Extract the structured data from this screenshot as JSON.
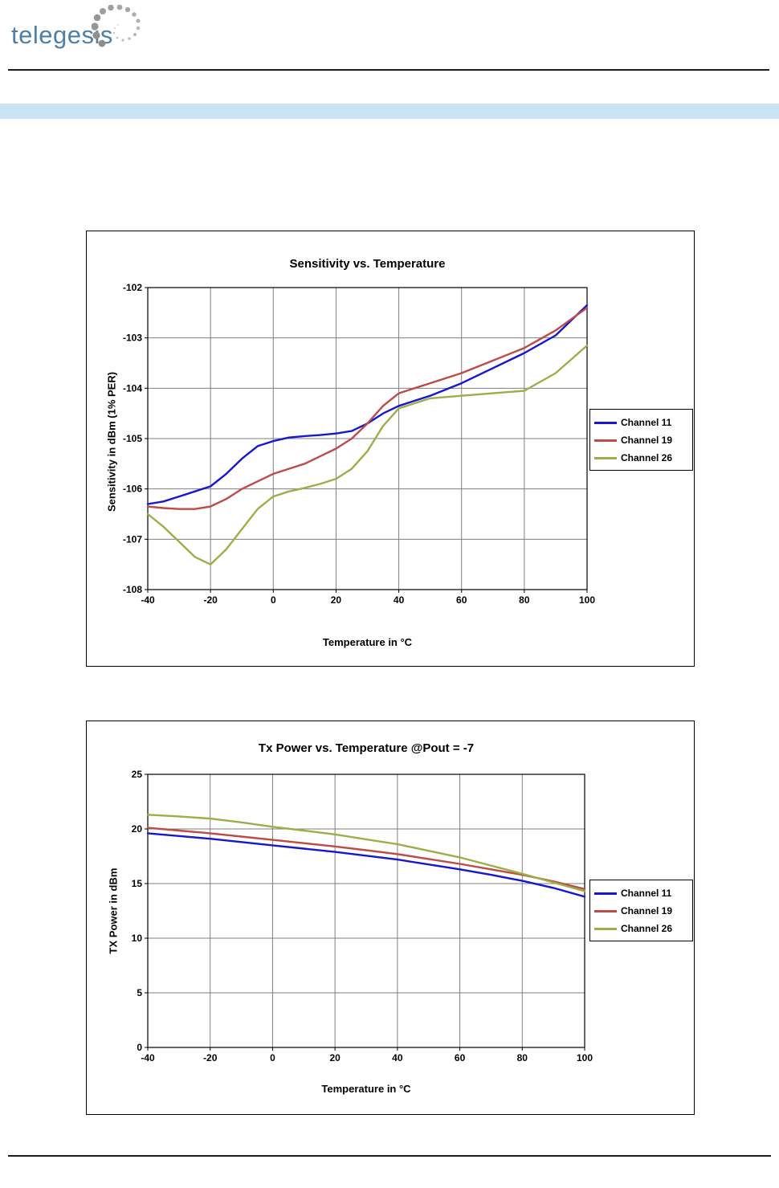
{
  "page": {
    "logo_text": "telegesis",
    "band_color": "#c9e3f4"
  },
  "chart_data": [
    {
      "type": "line",
      "title": "Sensitivity vs. Temperature",
      "xlabel": "Temperature in °C",
      "ylabel": "Sensitivity in dBm (1% PER)",
      "xlim": [
        -40,
        100
      ],
      "ylim": [
        -108,
        -102
      ],
      "xticks": [
        -40,
        -20,
        0,
        20,
        40,
        60,
        80,
        100
      ],
      "yticks": [
        -102,
        -103,
        -104,
        -105,
        -106,
        -107,
        -108
      ],
      "grid": true,
      "legend_position": "right",
      "x": [
        -40,
        -35,
        -30,
        -25,
        -20,
        -15,
        -10,
        -5,
        0,
        5,
        10,
        15,
        20,
        25,
        30,
        35,
        40,
        45,
        50,
        60,
        70,
        80,
        90,
        100
      ],
      "series": [
        {
          "name": "Channel 11",
          "color": "#1717d1",
          "values": [
            -106.3,
            -106.25,
            -106.15,
            -106.05,
            -105.95,
            -105.7,
            -105.4,
            -105.15,
            -105.05,
            -104.98,
            -104.95,
            -104.93,
            -104.9,
            -104.85,
            -104.7,
            -104.5,
            -104.35,
            -104.25,
            -104.15,
            -103.9,
            -103.6,
            -103.3,
            -102.95,
            -102.35
          ]
        },
        {
          "name": "Channel 19",
          "color": "#bd4b47",
          "values": [
            -106.35,
            -106.38,
            -106.4,
            -106.4,
            -106.35,
            -106.2,
            -106.0,
            -105.85,
            -105.7,
            -105.6,
            -105.5,
            -105.35,
            -105.2,
            -105.0,
            -104.7,
            -104.35,
            -104.1,
            -104.0,
            -103.9,
            -103.7,
            -103.45,
            -103.2,
            -102.85,
            -102.4
          ]
        },
        {
          "name": "Channel 26",
          "color": "#9cae49",
          "values": [
            -106.5,
            -106.75,
            -107.05,
            -107.35,
            -107.5,
            -107.2,
            -106.8,
            -106.4,
            -106.15,
            -106.05,
            -105.98,
            -105.9,
            -105.8,
            -105.6,
            -105.25,
            -104.75,
            -104.4,
            -104.3,
            -104.2,
            -104.15,
            -104.1,
            -104.05,
            -103.7,
            -103.15
          ]
        }
      ]
    },
    {
      "type": "line",
      "title": "Tx Power vs. Temperature @Pout = -7",
      "xlabel": "Temperature in °C",
      "ylabel": "TX Power in dBm",
      "xlim": [
        -40,
        100
      ],
      "ylim": [
        0,
        25
      ],
      "xticks": [
        -40,
        -20,
        0,
        20,
        40,
        60,
        80,
        100
      ],
      "yticks": [
        25,
        20,
        15,
        10,
        5,
        0
      ],
      "grid": true,
      "legend_position": "right",
      "x": [
        -40,
        -30,
        -20,
        -10,
        0,
        10,
        20,
        30,
        40,
        50,
        60,
        70,
        80,
        90,
        100
      ],
      "series": [
        {
          "name": "Channel 11",
          "color": "#1717d1",
          "values": [
            19.6,
            19.35,
            19.1,
            18.8,
            18.5,
            18.2,
            17.9,
            17.55,
            17.2,
            16.75,
            16.3,
            15.8,
            15.25,
            14.6,
            13.8
          ]
        },
        {
          "name": "Channel 19",
          "color": "#bd4b47",
          "values": [
            20.1,
            19.85,
            19.6,
            19.3,
            19.0,
            18.7,
            18.4,
            18.05,
            17.7,
            17.25,
            16.8,
            16.3,
            15.8,
            15.2,
            14.5
          ]
        },
        {
          "name": "Channel 26",
          "color": "#9cae49",
          "values": [
            21.3,
            21.15,
            20.95,
            20.6,
            20.2,
            19.85,
            19.5,
            19.05,
            18.6,
            18.0,
            17.4,
            16.65,
            15.9,
            15.1,
            14.3
          ]
        }
      ]
    }
  ]
}
